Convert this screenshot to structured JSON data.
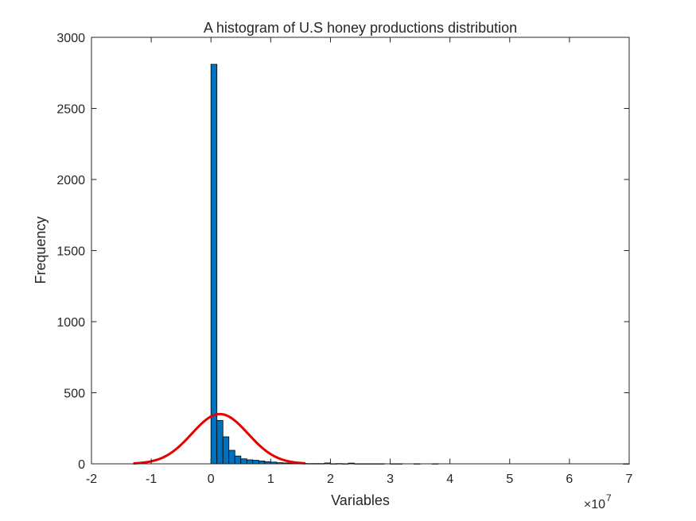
{
  "chart_data": {
    "type": "bar",
    "title": "A histogram of U.S honey productions distribution",
    "xlabel": "Variables",
    "ylabel": "Frequency",
    "x_exponent_label": "×10",
    "x_exponent_power": "7",
    "x_scale": 10000000,
    "xlim": [
      -20000000,
      70000000
    ],
    "ylim": [
      0,
      3000
    ],
    "x_ticks": [
      -2,
      -1,
      0,
      1,
      2,
      3,
      4,
      5,
      6,
      7
    ],
    "x_tick_labels": [
      "-2",
      "-1",
      "0",
      "1",
      "2",
      "3",
      "4",
      "5",
      "6",
      "7"
    ],
    "y_ticks": [
      0,
      500,
      1000,
      1500,
      2000,
      2500,
      3000
    ],
    "y_tick_labels": [
      "0",
      "500",
      "1000",
      "1500",
      "2000",
      "2500",
      "3000"
    ],
    "bin_start": 0,
    "bin_width": 1000000,
    "values": [
      2810,
      305,
      190,
      95,
      55,
      35,
      28,
      25,
      20,
      15,
      12,
      8,
      6,
      4,
      3,
      3,
      2,
      2,
      2,
      6,
      1,
      2,
      1,
      5,
      1,
      1,
      1,
      1,
      1,
      0,
      1,
      1,
      0,
      0,
      1,
      0,
      0,
      1,
      0,
      0,
      0,
      0,
      0,
      0,
      0,
      0,
      0,
      0,
      0,
      0,
      0,
      0,
      0,
      0,
      0,
      0,
      0,
      0,
      0,
      0,
      0,
      0,
      0,
      0,
      0,
      0,
      0,
      0,
      0,
      1
    ],
    "fit": {
      "type": "normal",
      "mean": 1500000,
      "std": 4700000,
      "peak": 350,
      "x_range": [
        -13000000,
        15800000
      ]
    },
    "grid": false,
    "colors": {
      "bar_fill": "#0072BD",
      "bar_edge": "#000000",
      "fit_line": "#E60000",
      "axis": "#262626"
    }
  }
}
